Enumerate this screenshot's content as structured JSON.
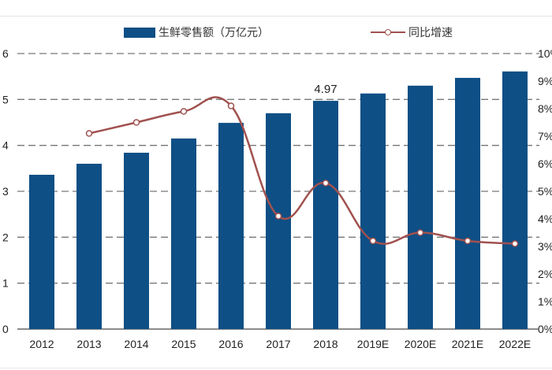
{
  "chart_data": {
    "type": "bar",
    "title": "",
    "categories": [
      "2012",
      "2013",
      "2014",
      "2015",
      "2016",
      "2017",
      "2018",
      "2019E",
      "2020E",
      "2021E",
      "2022E"
    ],
    "series": [
      {
        "name": "生鲜零售额（万亿元）",
        "type": "bar",
        "axis": "left",
        "color": "#0e4f85",
        "values": [
          3.36,
          3.6,
          3.84,
          4.15,
          4.49,
          4.7,
          4.97,
          5.13,
          5.3,
          5.47,
          5.61
        ]
      },
      {
        "name": "同比增速",
        "type": "line",
        "axis": "right",
        "color": "#a0514f",
        "values": [
          null,
          7.1,
          7.5,
          7.9,
          8.1,
          4.1,
          5.3,
          3.2,
          3.5,
          3.2,
          3.1
        ]
      }
    ],
    "annotations": [
      {
        "category": "2018",
        "text": "4.97"
      }
    ],
    "left_axis": {
      "ylim": [
        0,
        6
      ],
      "ticks": [
        "0",
        "1",
        "2",
        "3",
        "4",
        "5",
        "6"
      ]
    },
    "right_axis": {
      "ylim": [
        0,
        10
      ],
      "ticks": [
        "0%",
        "1%",
        "2%",
        "3%",
        "4%",
        "5%",
        "6%",
        "7%",
        "8%",
        "9%",
        "10%"
      ]
    },
    "grid": "dashed horizontal at left-axis integer ticks",
    "legend_position": "top"
  },
  "legend": {
    "bar_label": "生鲜零售额（万亿元）",
    "line_label": "同比增速"
  }
}
